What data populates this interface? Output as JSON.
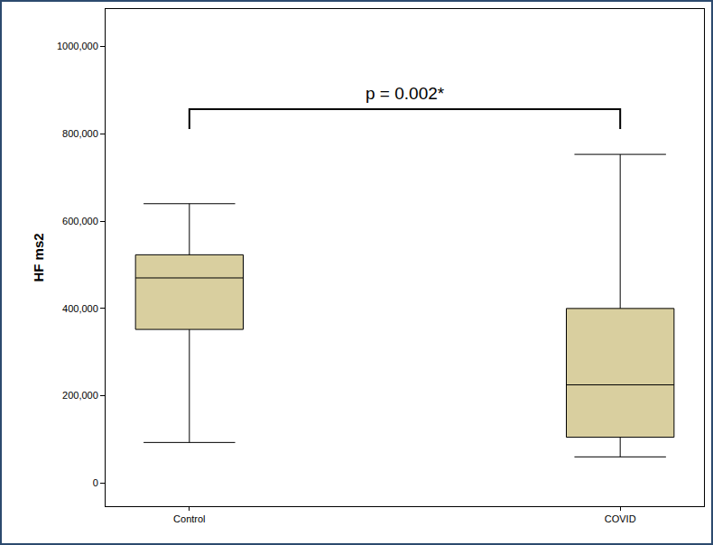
{
  "chart_data": {
    "type": "box",
    "y_label": "HF ms2",
    "categories": [
      "Control",
      "COVID"
    ],
    "min": [
      93,
      60
    ],
    "q1": [
      352,
      105
    ],
    "median": [
      470,
      225
    ],
    "q3": [
      523,
      400
    ],
    "max": [
      640,
      753
    ],
    "color": "#d9cf9f",
    "ylim": [
      -53,
      1086
    ],
    "yticks": [
      0,
      {
        "value": 200,
        "label": "200,000"
      },
      {
        "value": 400,
        "label": "400,000"
      },
      {
        "value": 600,
        "label": "600,000"
      },
      {
        "value": 800,
        "label": "800,000"
      },
      {
        "value": 1000,
        "label": "1000,000"
      }
    ],
    "grid": false,
    "annotations": [
      {
        "text": "p = 0.002*"
      }
    ]
  }
}
